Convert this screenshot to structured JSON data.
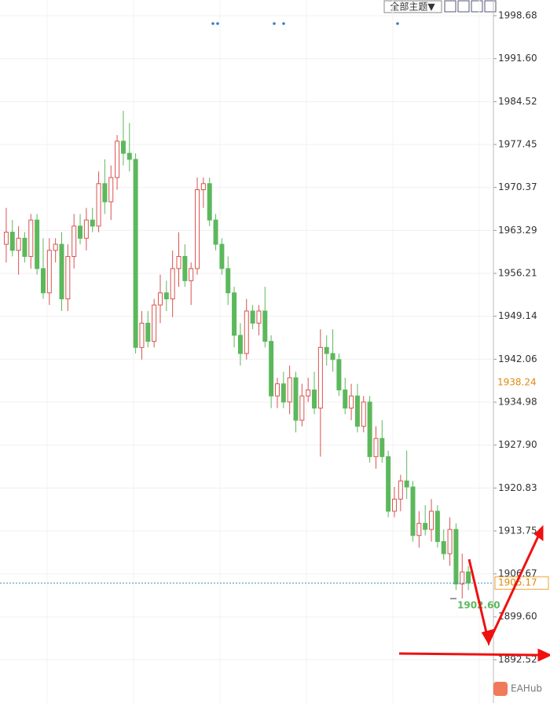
{
  "chart_data": {
    "type": "candlestick",
    "toolbar": {
      "theme_button": "全部主题▼"
    },
    "brand": "EAHub",
    "up_color": "#d9534f",
    "down_color": "#5cb85c",
    "open": [
      1961,
      1963,
      1960,
      1962,
      1959,
      1965,
      1957,
      1953,
      1960,
      1961,
      1952,
      1959,
      1964,
      1962,
      1965,
      1964,
      1971,
      1968,
      1972,
      1978,
      1976,
      1975,
      1944,
      1948,
      1945,
      1951,
      1953,
      1952,
      1957,
      1959,
      1955,
      1957,
      1970,
      1971,
      1965,
      1961,
      1957,
      1953,
      1946,
      1943,
      1950,
      1948,
      1950,
      1945,
      1936,
      1938,
      1935,
      1939,
      1932,
      1936,
      1937,
      1934,
      1944,
      1943,
      1942,
      1937,
      1934,
      1936,
      1931,
      1935,
      1926,
      1929,
      1926,
      1917,
      1919,
      1922,
      1921,
      1913,
      1915,
      1914,
      1917,
      1912,
      1910,
      1914,
      1905,
      1907
    ],
    "high": [
      1967,
      1965,
      1964,
      1963,
      1966,
      1966,
      1962,
      1962,
      1962,
      1963,
      1961,
      1966,
      1966,
      1967,
      1967,
      1973,
      1975,
      1974,
      1979,
      1983,
      1981,
      1976,
      1950,
      1950,
      1952,
      1956,
      1955,
      1960,
      1963,
      1961,
      1958,
      1972,
      1972,
      1972,
      1966,
      1962,
      1959,
      1954,
      1948,
      1952,
      1951,
      1951,
      1954,
      1946,
      1939,
      1940,
      1941,
      1940,
      1938,
      1939,
      1940,
      1947,
      1946,
      1947,
      1943,
      1939,
      1938,
      1938,
      1936,
      1936,
      1931,
      1932,
      1927,
      1921,
      1923,
      1927,
      1922,
      1917,
      1918,
      1919,
      1918,
      1914,
      1916,
      1915,
      1910,
      1908
    ],
    "low": [
      1958,
      1959,
      1956,
      1958,
      1957,
      1956,
      1952,
      1951,
      1958,
      1950,
      1950,
      1957,
      1961,
      1960,
      1963,
      1963,
      1966,
      1965,
      1970,
      1974,
      1973,
      1943,
      1942,
      1944,
      1944,
      1948,
      1950,
      1949,
      1954,
      1954,
      1951,
      1956,
      1967,
      1964,
      1960,
      1956,
      1951,
      1944,
      1941,
      1942,
      1947,
      1946,
      1944,
      1934,
      1934,
      1934,
      1933,
      1930,
      1931,
      1935,
      1933,
      1926,
      1941,
      1940,
      1936,
      1933,
      1932,
      1930,
      1930,
      1925,
      1924,
      1925,
      1916,
      1916,
      1917,
      1919,
      1912,
      1911,
      1913,
      1912,
      1911,
      1909,
      1908,
      1904,
      1902.6,
      1904
    ],
    "close": [
      1963,
      1960,
      1962,
      1959,
      1965,
      1957,
      1953,
      1960,
      1961,
      1952,
      1959,
      1964,
      1962,
      1965,
      1964,
      1971,
      1968,
      1972,
      1978,
      1976,
      1975,
      1944,
      1948,
      1945,
      1951,
      1953,
      1952,
      1957,
      1959,
      1955,
      1957,
      1970,
      1971,
      1965,
      1961,
      1957,
      1953,
      1946,
      1943,
      1950,
      1948,
      1950,
      1945,
      1936,
      1938,
      1935,
      1939,
      1932,
      1936,
      1937,
      1934,
      1944,
      1943,
      1942,
      1937,
      1934,
      1936,
      1931,
      1935,
      1926,
      1929,
      1926,
      1917,
      1919,
      1922,
      1921,
      1913,
      1915,
      1914,
      1917,
      1912,
      1910,
      1914,
      1905,
      1907,
      1905.17
    ],
    "ylim": [
      1885.39,
      2001.27
    ],
    "yticks": [
      1998.68,
      {
        "value": 1991.6,
        "label": "1991.60"
      },
      1984.52,
      1977.45,
      1970.37,
      1963.29,
      1956.21,
      1949.14,
      1942.06,
      1934.98,
      {
        "value": 1927.9,
        "label": "1927.90"
      },
      1920.83,
      1913.75,
      1906.67,
      {
        "value": 1899.6,
        "label": "1899.60"
      },
      1892.52
    ],
    "grid": true,
    "current_price": 1905.17,
    "marked_price": 1938.24,
    "low_label": {
      "value": 1902.6,
      "label": "1902.60"
    }
  }
}
